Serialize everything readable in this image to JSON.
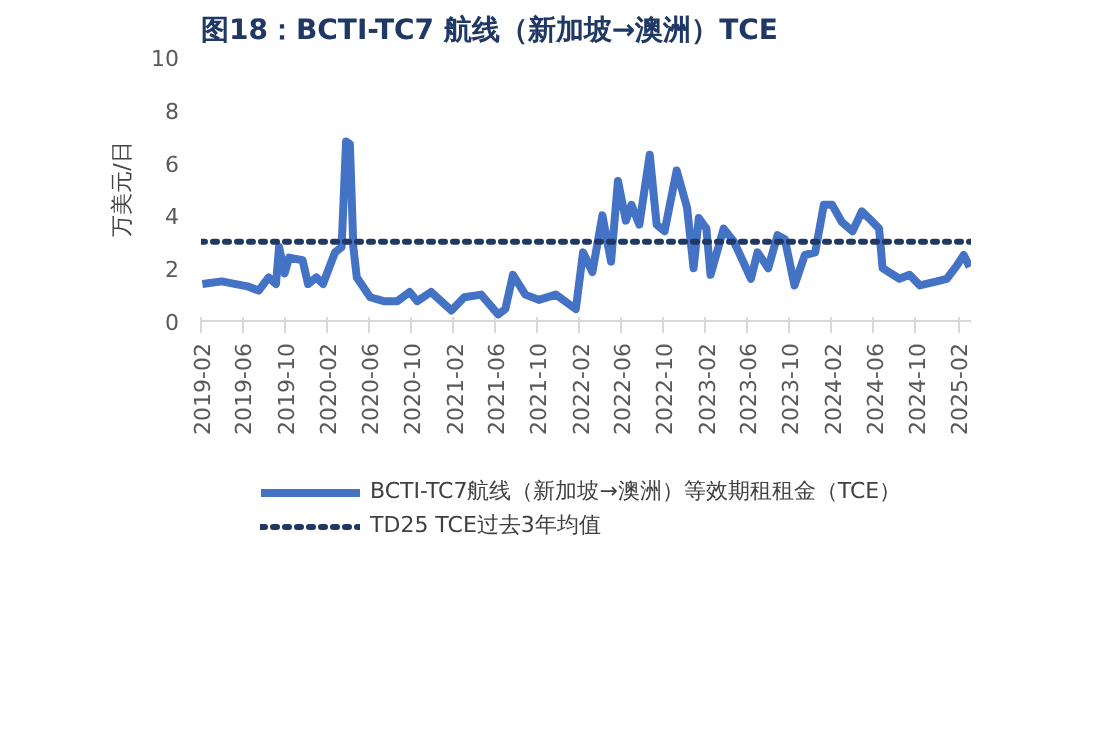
{
  "chart_data": {
    "type": "line",
    "title": "图18：BCTI-TC7 航线（新加坡→澳洲）TCE",
    "ylabel": "万美元/日",
    "x": [
      "2019-02-05",
      "2019-04-02",
      "2019-06-19",
      "2019-07-18",
      "2019-08-16",
      "2019-09-06",
      "2019-09-15",
      "2019-10-01",
      "2019-10-14",
      "2019-11-22",
      "2019-12-08",
      "2020-01-01",
      "2020-01-20",
      "2020-02-24",
      "2020-03-14",
      "2020-03-27",
      "2020-04-07",
      "2020-04-17",
      "2020-04-27",
      "2020-06-05",
      "2020-07-14",
      "2020-08-22",
      "2020-09-27",
      "2020-10-19",
      "2020-11-28",
      "2021-01-26",
      "2021-03-04",
      "2021-04-22",
      "2021-06-10",
      "2021-07-01",
      "2021-07-23",
      "2021-08-28",
      "2021-10-06",
      "2021-11-24",
      "2022-01-21",
      "2022-02-11",
      "2022-03-10",
      "2022-04-08",
      "2022-05-03",
      "2022-05-23",
      "2022-06-15",
      "2022-07-01",
      "2022-07-24",
      "2022-08-23",
      "2022-09-12",
      "2022-10-05",
      "2022-11-09",
      "2022-12-09",
      "2022-12-28",
      "2023-01-12",
      "2023-02-03",
      "2023-02-15",
      "2023-03-25",
      "2023-04-24",
      "2023-06-12",
      "2023-07-01",
      "2023-08-01",
      "2023-08-28",
      "2023-09-18",
      "2023-10-16",
      "2023-11-15",
      "2023-12-15",
      "2024-01-09",
      "2024-02-02",
      "2024-03-01",
      "2024-04-01",
      "2024-04-28",
      "2024-05-18",
      "2024-06-17",
      "2024-06-27",
      "2024-08-15",
      "2024-09-13",
      "2024-10-13",
      "2024-12-01",
      "2024-12-30",
      "2025-01-28",
      "2025-02-17",
      "2025-03-06"
    ],
    "series": [
      {
        "name": "BCTI-TC7航线（新加坡→澳洲）等效期租租金（TCE）",
        "color": "#4472c4",
        "values": [
          1.4,
          1.5,
          1.3,
          1.15,
          1.65,
          1.4,
          2.8,
          1.8,
          2.4,
          2.3,
          1.4,
          1.65,
          1.4,
          2.6,
          2.8,
          6.8,
          6.7,
          2.8,
          1.65,
          0.9,
          0.75,
          0.75,
          1.1,
          0.75,
          1.1,
          0.4,
          0.9,
          1.0,
          0.25,
          0.45,
          1.75,
          1.0,
          0.8,
          1.0,
          0.45,
          2.6,
          1.85,
          4.0,
          2.25,
          5.3,
          3.8,
          4.4,
          3.65,
          6.3,
          3.65,
          3.4,
          5.7,
          4.3,
          2.0,
          3.9,
          3.5,
          1.75,
          3.5,
          3.0,
          1.6,
          2.6,
          2.0,
          3.25,
          3.1,
          1.35,
          2.5,
          2.6,
          4.4,
          4.4,
          3.75,
          3.4,
          4.15,
          3.9,
          3.5,
          2.0,
          1.6,
          1.75,
          1.35,
          1.5,
          1.6,
          2.1,
          2.5,
          2.05
        ]
      }
    ],
    "ref_lines": [
      {
        "axis": "y",
        "value": 3,
        "label": "TD25 TCE过去3年均值",
        "color": "#1f3864",
        "line_style": "dotted"
      }
    ],
    "xlim": [
      "2019-02-01",
      "2025-03-10"
    ],
    "xticks": [
      "2019-02",
      "2019-06",
      "2019-10",
      "2020-02",
      "2020-06",
      "2020-10",
      "2021-02",
      "2021-06",
      "2021-10",
      "2022-02",
      "2022-06",
      "2022-10",
      "2023-02",
      "2023-06",
      "2023-10",
      "2024-02",
      "2024-06",
      "2024-10",
      "2025-02"
    ],
    "ylim": [
      0,
      10
    ],
    "yticks": [
      0,
      2,
      4,
      6,
      8,
      10
    ],
    "grid": false,
    "legend": "bottom",
    "marker": "none",
    "line_style": "solid"
  }
}
